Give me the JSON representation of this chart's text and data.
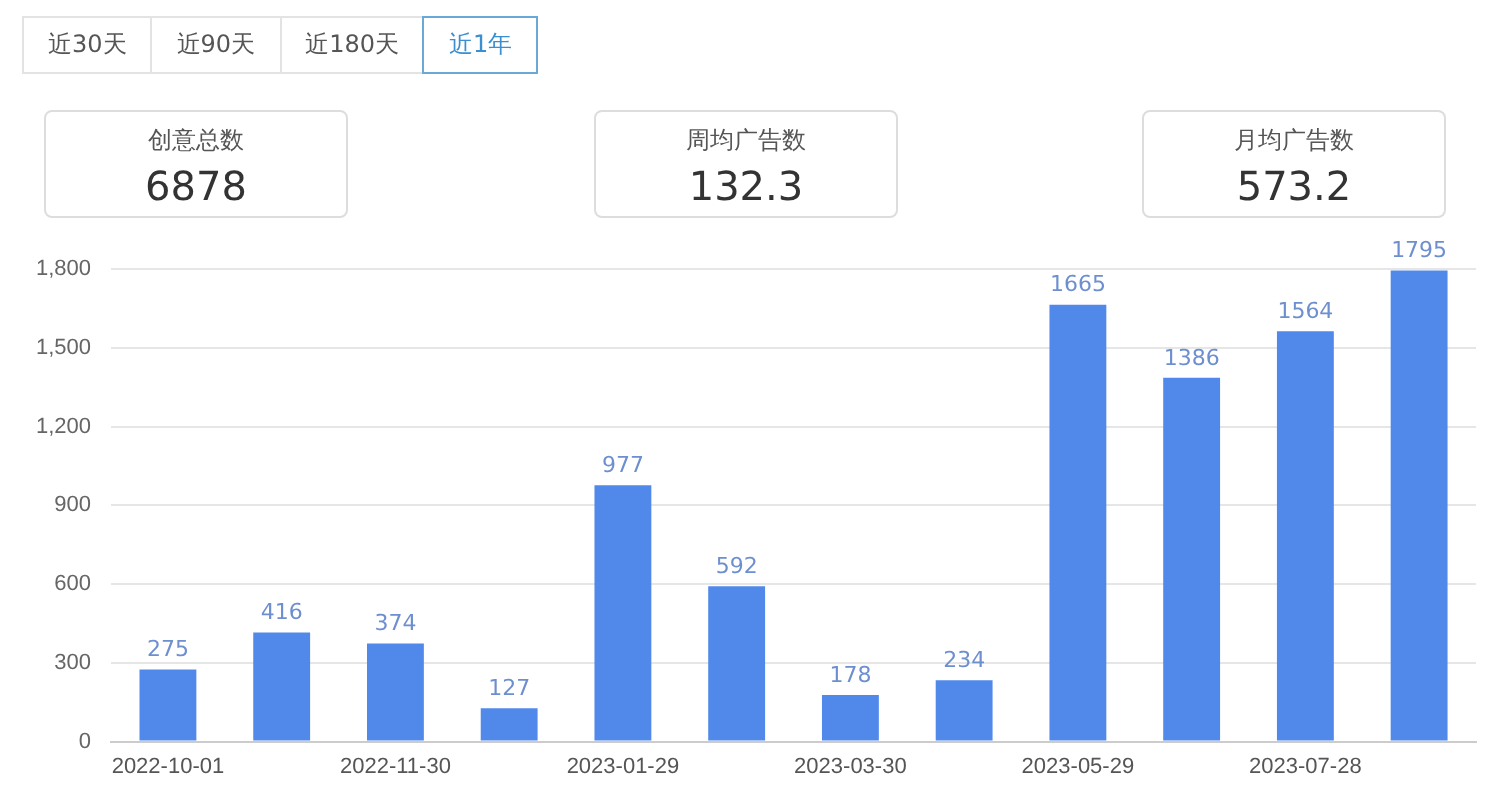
{
  "chart_data": [
    {
      "type": "other",
      "annotations": [
        "近30天",
        "近90天",
        "近180天",
        "近1年"
      ]
    },
    {
      "type": "other",
      "title": "创意总数",
      "annotations": [
        "6878"
      ]
    },
    {
      "type": "other",
      "title": "周均广告数",
      "annotations": [
        "132.3"
      ]
    },
    {
      "type": "other",
      "title": "月均广告数",
      "annotations": [
        "573.2"
      ]
    },
    {
      "type": "bar",
      "categories": [
        "2022-10-01",
        null,
        "2022-11-30",
        null,
        "2023-01-29",
        null,
        "2023-03-30",
        null,
        "2023-05-29",
        null,
        "2023-07-28",
        null
      ],
      "values": [
        275,
        416,
        374,
        127,
        977,
        592,
        178,
        234,
        1665,
        1386,
        1564,
        1795
      ],
      "color": "#5089ea",
      "ylim": [
        0,
        1800
      ],
      "yticks": [
        0,
        300,
        600,
        900,
        {
          "value": 1200,
          "label": "1,200"
        },
        {
          "value": 1500,
          "label": "1,500"
        },
        {
          "value": 1800,
          "label": "1,800"
        }
      ],
      "grid": "y",
      "legend": false,
      "data_labels": true
    }
  ]
}
